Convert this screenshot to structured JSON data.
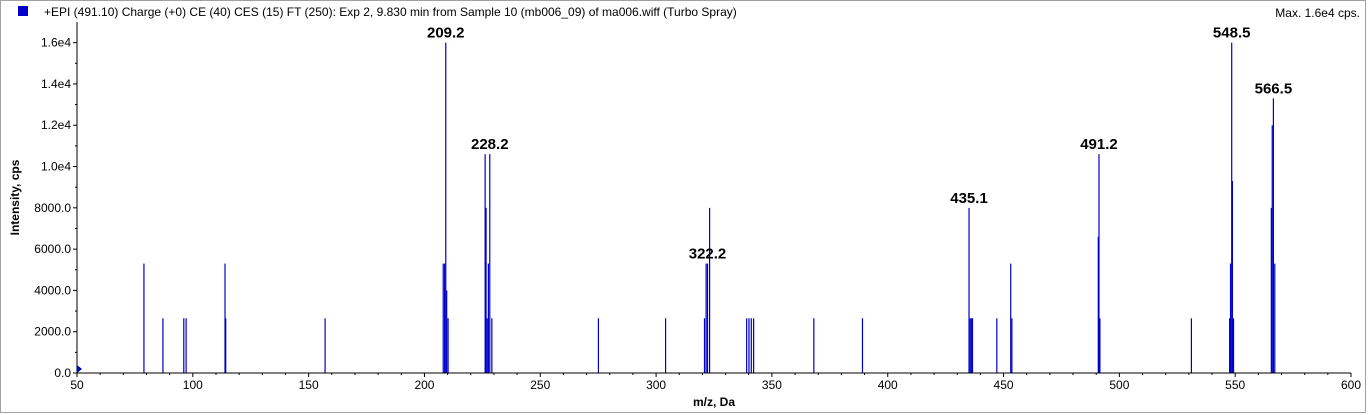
{
  "header": {
    "title": "+EPI (491.10) Charge (+0) CE (40) CES (15) FT (250): Exp 2, 9.830 min from Sample 10 (mb006_09) of ma006.wiff (Turbo Spray)",
    "max_label": "Max. 1.6e4 cps."
  },
  "colors": {
    "series": "#0000c8",
    "axis": "#000000",
    "frame": "#a0a0a0"
  },
  "chart_data": {
    "type": "bar",
    "title": "+EPI (491.10) Charge (+0) CE (40) CES (15) FT (250): Exp 2, 9.830 min from Sample 10 (mb006_09) of ma006.wiff (Turbo Spray)",
    "xlabel": "m/z, Da",
    "ylabel": "Intensity, cps",
    "xlim": [
      50,
      600
    ],
    "ylim": [
      0,
      17000
    ],
    "x_ticks": [
      50,
      100,
      150,
      200,
      250,
      300,
      350,
      400,
      450,
      500,
      550,
      600
    ],
    "x_tick_labels": [
      "50",
      "100",
      "150",
      "200",
      "250",
      "300",
      "350",
      "400",
      "450",
      "500",
      "550",
      "600"
    ],
    "y_ticks": [
      0,
      2000,
      4000,
      6000,
      8000,
      10000,
      12000,
      14000,
      16000
    ],
    "y_tick_labels": [
      "0.0",
      "2000.0",
      "4000.0",
      "6000.0",
      "8000.0",
      "1.0e4",
      "1.2e4",
      "1.4e4",
      "1.6e4"
    ],
    "peaks": [
      {
        "mz": 78.9,
        "intensity": 5300
      },
      {
        "mz": 87.1,
        "intensity": 2650
      },
      {
        "mz": 96.1,
        "intensity": 2650
      },
      {
        "mz": 97.1,
        "intensity": 2650
      },
      {
        "mz": 113.9,
        "intensity": 5300
      },
      {
        "mz": 114.2,
        "intensity": 2650
      },
      {
        "mz": 157.1,
        "intensity": 2650
      },
      {
        "mz": 208.1,
        "intensity": 5300
      },
      {
        "mz": 208.7,
        "intensity": 5300
      },
      {
        "mz": 209.2,
        "intensity": 16000
      },
      {
        "mz": 209.6,
        "intensity": 4000
      },
      {
        "mz": 210.2,
        "intensity": 2650
      },
      {
        "mz": 226.2,
        "intensity": 10600
      },
      {
        "mz": 226.6,
        "intensity": 8000
      },
      {
        "mz": 227.1,
        "intensity": 2650
      },
      {
        "mz": 227.6,
        "intensity": 5300
      },
      {
        "mz": 228.2,
        "intensity": 10600
      },
      {
        "mz": 229.1,
        "intensity": 2650
      },
      {
        "mz": 275.1,
        "intensity": 2650
      },
      {
        "mz": 304.1,
        "intensity": 2650
      },
      {
        "mz": 320.9,
        "intensity": 2650
      },
      {
        "mz": 321.6,
        "intensity": 5300
      },
      {
        "mz": 322.2,
        "intensity": 5300
      },
      {
        "mz": 323.1,
        "intensity": 8000
      },
      {
        "mz": 339.1,
        "intensity": 2650
      },
      {
        "mz": 340.1,
        "intensity": 2650
      },
      {
        "mz": 341.1,
        "intensity": 2650
      },
      {
        "mz": 342.1,
        "intensity": 2650
      },
      {
        "mz": 368.1,
        "intensity": 2650
      },
      {
        "mz": 389.1,
        "intensity": 2650
      },
      {
        "mz": 435.1,
        "intensity": 8000
      },
      {
        "mz": 435.6,
        "intensity": 2650
      },
      {
        "mz": 436.1,
        "intensity": 2650
      },
      {
        "mz": 436.6,
        "intensity": 2650
      },
      {
        "mz": 447.1,
        "intensity": 2650
      },
      {
        "mz": 453.1,
        "intensity": 5300
      },
      {
        "mz": 453.6,
        "intensity": 2650
      },
      {
        "mz": 490.9,
        "intensity": 6600
      },
      {
        "mz": 491.2,
        "intensity": 10600
      },
      {
        "mz": 491.6,
        "intensity": 2650
      },
      {
        "mz": 531.1,
        "intensity": 2650
      },
      {
        "mz": 547.6,
        "intensity": 2650
      },
      {
        "mz": 548.0,
        "intensity": 5300
      },
      {
        "mz": 548.5,
        "intensity": 16000
      },
      {
        "mz": 548.8,
        "intensity": 9300
      },
      {
        "mz": 549.3,
        "intensity": 2650
      },
      {
        "mz": 565.6,
        "intensity": 8000
      },
      {
        "mz": 566.0,
        "intensity": 12000
      },
      {
        "mz": 566.5,
        "intensity": 13300
      },
      {
        "mz": 567.1,
        "intensity": 5300
      }
    ],
    "annotations": [
      {
        "label": "209.2",
        "mz": 209.2,
        "intensity": 16000
      },
      {
        "label": "228.2",
        "mz": 228.2,
        "intensity": 10600
      },
      {
        "label": "322.2",
        "mz": 322.2,
        "intensity": 5300
      },
      {
        "label": "435.1",
        "mz": 435.1,
        "intensity": 8000
      },
      {
        "label": "491.2",
        "mz": 491.2,
        "intensity": 10600
      },
      {
        "label": "548.5",
        "mz": 548.5,
        "intensity": 16000
      },
      {
        "label": "566.5",
        "mz": 566.5,
        "intensity": 13300
      }
    ]
  }
}
